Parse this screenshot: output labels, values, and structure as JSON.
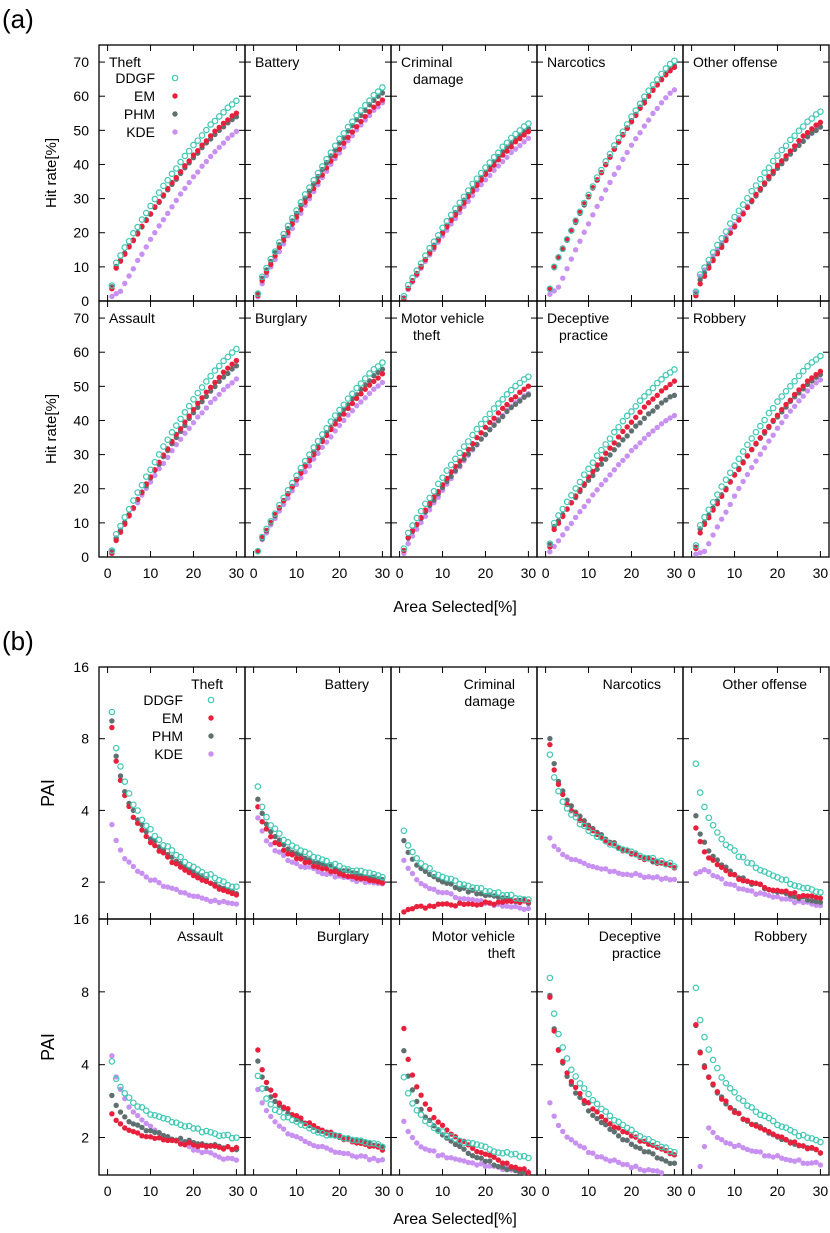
{
  "figure": {
    "label_a": "(a)",
    "label_b": "(b)",
    "x_axis_label": "Area Selected[%]",
    "x_axis_label_b": "Area Selected[%]",
    "legend": [
      "DDGF",
      "EM",
      "PHM",
      "KDE"
    ],
    "colors": {
      "DDGF": "#40c8b4",
      "EM": "#e8203c",
      "PHM": "#607070",
      "KDE": "#c890f0"
    }
  },
  "chart_data": [
    {
      "type": "scatter",
      "title": "(a)",
      "xlabel": "Area Selected[%]",
      "ylabel": "Hit rate[%]",
      "xlim": [
        -2,
        32
      ],
      "ylim": [
        0,
        75
      ],
      "xticks": [
        0,
        10,
        20,
        30
      ],
      "yticks": [
        0,
        10,
        20,
        30,
        40,
        50,
        60,
        70
      ],
      "x": [
        1,
        30
      ],
      "panels": [
        {
          "name": "Theft",
          "title": [
            "Theft"
          ],
          "align": "left",
          "legend": true,
          "kde_lag": 3,
          "series": {
            "DDGF": [
              9,
              58.5
            ],
            "EM": [
              7.5,
              55
            ],
            "PHM": [
              8,
              54
            ],
            "KDE": [
              3,
              49.5
            ]
          }
        },
        {
          "name": "Battery",
          "title": [
            "Battery"
          ],
          "align": "left",
          "kde_lag": 1,
          "series": {
            "DDGF": [
              4.5,
              62.5
            ],
            "EM": [
              3.5,
              59
            ],
            "PHM": [
              4,
              61
            ],
            "KDE": [
              2.5,
              58
            ]
          }
        },
        {
          "name": "Criminal damage",
          "title": [
            "Criminal",
            "damage"
          ],
          "align": "left",
          "kde_lag": 1,
          "series": {
            "DDGF": [
              2.5,
              52
            ],
            "EM": [
              1.5,
              49.5
            ],
            "PHM": [
              1.5,
              50.5
            ],
            "KDE": [
              1.5,
              47.5
            ]
          }
        },
        {
          "name": "Narcotics",
          "title": [
            "Narcotics"
          ],
          "align": "left",
          "kde_lag": 3,
          "series": {
            "DDGF": [
              7,
              70.5
            ],
            "EM": [
              7.5,
              68.5
            ],
            "PHM": [
              7,
              69
            ],
            "KDE": [
              4,
              62
            ]
          }
        },
        {
          "name": "Other offense",
          "title": [
            "Other offense"
          ],
          "align": "left",
          "kde_lag": 1,
          "series": {
            "DDGF": [
              5.5,
              55.5
            ],
            "EM": [
              3,
              52.5
            ],
            "PHM": [
              4,
              51
            ],
            "KDE": [
              5,
              51
            ]
          }
        },
        {
          "name": "Assault",
          "title": [
            "Assault"
          ],
          "align": "left",
          "kde_lag": 1,
          "series": {
            "DDGF": [
              4,
              61
            ],
            "EM": [
              2.5,
              57.5
            ],
            "PHM": [
              3,
              56
            ],
            "KDE": [
              3.5,
              52
            ]
          }
        },
        {
          "name": "Burglary",
          "title": [
            "Burglary"
          ],
          "align": "left",
          "kde_lag": 1,
          "series": {
            "DDGF": [
              3.5,
              57
            ],
            "EM": [
              3.5,
              53.5
            ],
            "PHM": [
              3,
              55
            ],
            "KDE": [
              3,
              51
            ]
          }
        },
        {
          "name": "Motor vehicle theft",
          "title": [
            "Motor vehicle",
            "theft"
          ],
          "align": "left",
          "kde_lag": 1,
          "series": {
            "DDGF": [
              5,
              53
            ],
            "EM": [
              3.5,
              50
            ],
            "PHM": [
              3.5,
              47.5
            ],
            "KDE": [
              2,
              48
            ]
          }
        },
        {
          "name": "Deceptive practice",
          "title": [
            "Deceptive",
            "practice"
          ],
          "align": "left",
          "kde_lag": 2,
          "series": {
            "DDGF": [
              8,
              55
            ],
            "EM": [
              6,
              51.5
            ],
            "PHM": [
              7,
              47.5
            ],
            "KDE": [
              3,
              41.5
            ]
          }
        },
        {
          "name": "Robbery",
          "title": [
            "Robbery"
          ],
          "align": "left",
          "kde_lag": 3,
          "series": {
            "DDGF": [
              7,
              59
            ],
            "EM": [
              5,
              54.5
            ],
            "PHM": [
              6,
              53.5
            ],
            "KDE": [
              1.5,
              52
            ]
          }
        }
      ]
    },
    {
      "type": "scatter",
      "title": "(b)",
      "xlabel": "Area Selected[%]",
      "ylabel": "PAI",
      "yscale": "log2",
      "xlim": [
        -2,
        32
      ],
      "ylim": [
        1.4,
        16
      ],
      "xticks": [
        0,
        10,
        20,
        30
      ],
      "yticks": [
        2,
        4,
        8,
        16
      ],
      "x": [
        1,
        30
      ],
      "panels": [
        {
          "name": "Theft",
          "title": [
            "Theft"
          ],
          "align": "right",
          "legend": true,
          "series": {
            "DDGF": [
              10.5,
              1.9
            ],
            "EM": [
              9,
              1.75
            ],
            "PHM": [
              9.5,
              1.8
            ],
            "KDE": [
              3.5,
              1.6
            ]
          }
        },
        {
          "name": "Battery",
          "title": [
            "Battery"
          ],
          "align": "right",
          "series": {
            "DDGF": [
              5,
              2.1
            ],
            "EM": [
              4.2,
              2.0
            ],
            "PHM": [
              4.5,
              2.05
            ],
            "KDE": [
              3.7,
              1.95
            ]
          }
        },
        {
          "name": "Criminal damage",
          "title": [
            "Criminal",
            "damage"
          ],
          "align": "right",
          "series": {
            "DDGF": [
              3.3,
              1.7
            ],
            "EM": [
              1.5,
              1.65
            ],
            "PHM": [
              3.0,
              1.65
            ],
            "KDE": [
              2.5,
              1.55
            ]
          }
        },
        {
          "name": "Narcotics",
          "title": [
            "Narcotics"
          ],
          "align": "right",
          "series": {
            "DDGF": [
              6.8,
              2.35
            ],
            "EM": [
              7.5,
              2.3
            ],
            "PHM": [
              8,
              2.3
            ],
            "KDE": [
              3.1,
              2.05
            ]
          }
        },
        {
          "name": "Other offense",
          "title": [
            "Other offense"
          ],
          "align": "right",
          "series": {
            "DDGF": [
              6.2,
              1.8
            ],
            "EM": [
              3.4,
              1.7
            ],
            "PHM": [
              3.8,
              1.65
            ],
            "KDE": [
              2.2,
              1.6
            ]
          }
        },
        {
          "name": "Assault",
          "title": [
            "Assault"
          ],
          "align": "right",
          "series": {
            "DDGF": [
              4.1,
              2.0
            ],
            "EM": [
              2.5,
              1.8
            ],
            "PHM": [
              3.0,
              1.8
            ],
            "KDE": [
              4.3,
              1.6
            ]
          }
        },
        {
          "name": "Burglary",
          "title": [
            "Burglary"
          ],
          "align": "right",
          "series": {
            "DDGF": [
              3.6,
              1.85
            ],
            "EM": [
              4.6,
              1.8
            ],
            "PHM": [
              4.2,
              1.82
            ],
            "KDE": [
              3.2,
              1.6
            ]
          }
        },
        {
          "name": "Motor vehicle theft",
          "title": [
            "Motor vehicle",
            "theft"
          ],
          "align": "right",
          "series": {
            "DDGF": [
              3.5,
              1.65
            ],
            "EM": [
              5.6,
              1.45
            ],
            "PHM": [
              4.6,
              1.4
            ],
            "KDE": [
              2.3,
              1.45
            ]
          }
        },
        {
          "name": "Deceptive practice",
          "title": [
            "Deceptive",
            "practice"
          ],
          "align": "right",
          "series": {
            "DDGF": [
              9.2,
              1.75
            ],
            "EM": [
              7.5,
              1.7
            ],
            "PHM": [
              7.8,
              1.55
            ],
            "KDE": [
              2.8,
              1.4
            ]
          }
        },
        {
          "name": "Robbery",
          "title": [
            "Robbery"
          ],
          "align": "right",
          "series": {
            "DDGF": [
              8.4,
              1.9
            ],
            "EM": [
              5.8,
              1.75
            ],
            "PHM": [
              5.8,
              1.75
            ],
            "KDE": [
              1.2,
              1.55
            ]
          }
        }
      ]
    }
  ]
}
